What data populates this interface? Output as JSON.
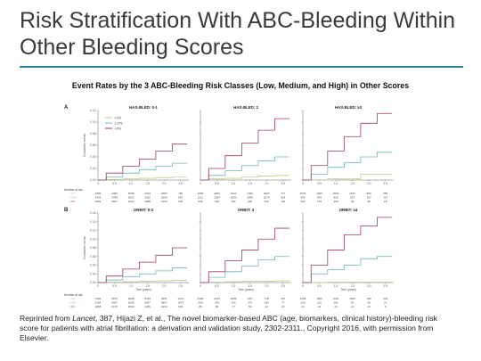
{
  "slide": {
    "title": "Risk Stratification With ABC-Bleeding Within Other Bleeding Scores",
    "subtitle": "Event Rates by the 3 ABC-Bleeding Risk Classes (Low, Medium, and High) in Other Scores",
    "caption_prefix": "Reprinted from ",
    "caption_journal": "Lancet",
    "caption_rest": ", 387, Hijazi Z, et al., The novel biomarker-based ABC (age, biomarkers, clinical history)-bleeding risk score for patients with atrial fibrillation: a derivation and validation study, 2302-2311., Copyright 2016, with permission from Elsevier."
  },
  "figure": {
    "panel_letters": [
      "A",
      "B"
    ],
    "legend": [
      "<1%",
      "1-2%",
      ">2%"
    ],
    "ylabel": "Cumulative events",
    "xlabel": "Time (years)",
    "number_at_risk_label": "Number at risk",
    "colors": {
      "low": "#c9c98a",
      "medium": "#6cb8b8",
      "high": "#a23a5e"
    }
  },
  "chart_data": [
    {
      "type": "line",
      "title": "HAS-BLED: 0-1",
      "ylim": [
        0,
        0.12
      ],
      "x": [
        0,
        0.5,
        1,
        1.5,
        2,
        2.5
      ],
      "series": [
        {
          "name": "<1%",
          "values": [
            0,
            0.001,
            0.002,
            0.003,
            0.004,
            0.005
          ]
        },
        {
          "name": "1-2%",
          "values": [
            0,
            0.005,
            0.012,
            0.018,
            0.024,
            0.029
          ]
        },
        {
          "name": ">2%",
          "values": [
            0,
            0.012,
            0.024,
            0.036,
            0.05,
            0.062
          ]
        }
      ],
      "risk_table": [
        [
          "4899",
          "4383",
          "4058",
          "3304",
          "2683",
          "766"
        ],
        [
          "3431",
          "2789",
          "4020",
          "3185",
          "2568",
          "667"
        ],
        [
          "2906",
          "2567",
          "2232",
          "1885",
          "1250",
          "538"
        ]
      ]
    },
    {
      "type": "line",
      "title": "HAS-BLED: 2",
      "ylim": [
        0,
        0.12
      ],
      "x": [
        0,
        0.5,
        1,
        1.5,
        2,
        2.5
      ],
      "series": [
        {
          "name": "<1%",
          "values": [
            0,
            0.002,
            0.003,
            0.005,
            0.007,
            0.008
          ]
        },
        {
          "name": "1-2%",
          "values": [
            0,
            0.008,
            0.016,
            0.025,
            0.033,
            0.04
          ]
        },
        {
          "name": ">2%",
          "values": [
            0,
            0.02,
            0.042,
            0.064,
            0.086,
            0.106
          ]
        }
      ],
      "risk_table": [
        [
          "4080",
          "4400",
          "4022",
          "3352",
          "2093",
          "717"
        ],
        [
          "2311",
          "2264",
          "2390",
          "1846",
          "2074",
          "624"
        ],
        [
          "535",
          "925",
          "492",
          "425",
          "362",
          "126"
        ]
      ]
    },
    {
      "type": "line",
      "title": "HAS-BLED: ≥3",
      "ylim": [
        0,
        0.12
      ],
      "x": [
        0,
        0.5,
        1,
        1.5,
        2,
        2.5
      ],
      "series": [
        {
          "name": "<1%",
          "values": [
            0,
            0,
            0.002,
            0.002,
            0.01,
            0.01
          ]
        },
        {
          "name": "1-2%",
          "values": [
            0,
            0.01,
            0.022,
            0.03,
            0.04,
            0.048
          ]
        },
        {
          "name": ">2%",
          "values": [
            0,
            0.025,
            0.05,
            0.075,
            0.098,
            0.115
          ]
        }
      ],
      "risk_table": [
        [
          "3578",
          "2065",
          "2696",
          "2647",
          "806",
          "555"
        ],
        [
          "685",
          "604",
          "629",
          "557",
          "297",
          "127"
        ],
        [
          "425",
          "153",
          "308",
          "94",
          "48",
          "18"
        ]
      ]
    },
    {
      "type": "line",
      "title": "ORBIT: 0-2",
      "ylim": [
        0,
        0.16
      ],
      "x": [
        0,
        0.5,
        1,
        1.5,
        2,
        2.5
      ],
      "series": [
        {
          "name": "<1%",
          "values": [
            0,
            0.001,
            0.002,
            0.003,
            0.004,
            0.005
          ]
        },
        {
          "name": "1-2%",
          "values": [
            0,
            0.006,
            0.013,
            0.02,
            0.027,
            0.034
          ]
        },
        {
          "name": ">2%",
          "values": [
            0,
            0.015,
            0.031,
            0.047,
            0.063,
            0.08
          ]
        }
      ],
      "risk_table": [
        [
          "7282",
          "6973",
          "6608",
          "5783",
          "4051",
          "1276"
        ],
        [
          "5104",
          "6347",
          "6325",
          "5047",
          "3867",
          "1073"
        ],
        [
          "2858",
          "2715",
          "2640",
          "2255",
          "1362",
          "645"
        ]
      ]
    },
    {
      "type": "line",
      "title": "ORBIT: 3",
      "ylim": [
        0,
        0.16
      ],
      "x": [
        0,
        0.5,
        1,
        1.5,
        2,
        2.5
      ],
      "series": [
        {
          "name": "<1%",
          "values": [
            0,
            0.001,
            0.002,
            0.003,
            0.003,
            0.004
          ]
        },
        {
          "name": "1-2%",
          "values": [
            0,
            0.012,
            0.025,
            0.038,
            0.052,
            0.06
          ]
        },
        {
          "name": ">2%",
          "values": [
            0,
            0.025,
            0.05,
            0.075,
            0.1,
            0.125
          ]
        }
      ],
      "risk_table": [
        [
          "2405",
          "2120",
          "1889",
          "1047",
          "778",
          "307"
        ],
        [
          "504",
          "470",
          "423",
          "372",
          "264",
          "77"
        ],
        [
          "85",
          "80",
          "77",
          "59",
          "40",
          "23"
        ]
      ]
    },
    {
      "type": "line",
      "title": "ORBIT: ≥4",
      "ylim": [
        0,
        0.16
      ],
      "x": [
        0,
        0.5,
        1,
        1.5,
        2,
        2.5
      ],
      "series": [
        {
          "name": "<1%",
          "values": [
            0,
            0,
            0.001,
            0.001,
            0.001,
            0.001
          ]
        },
        {
          "name": "1-2%",
          "values": [
            0,
            0.02,
            0.03,
            0.04,
            0.055,
            0.06
          ]
        },
        {
          "name": ">2%",
          "values": [
            0,
            0.04,
            0.075,
            0.11,
            0.13,
            0.15
          ]
        }
      ],
      "risk_table": [
        [
          "1299",
          "1189",
          "1091",
          "1500",
          "789",
          "323"
        ],
        [
          "120",
          "112",
          "101",
          "87",
          "53",
          "21"
        ],
        [
          "24",
          "24",
          "23",
          "21",
          "16",
          "6"
        ]
      ]
    }
  ]
}
